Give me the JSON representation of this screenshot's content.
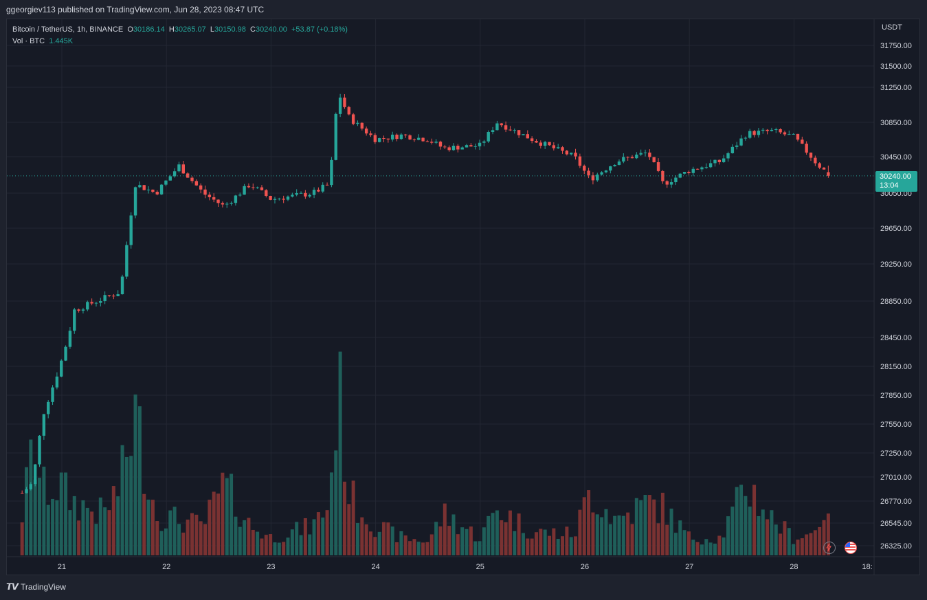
{
  "header": {
    "published": "ggeorgiev113 published on TradingView.com, Jun 28, 2023 08:47 UTC"
  },
  "legend": {
    "symbol": "Bitcoin / TetherUS, 1h, BINANCE",
    "o_label": "O",
    "o": "30186.14",
    "h_label": "H",
    "h": "30265.07",
    "l_label": "L",
    "l": "30150.98",
    "c_label": "C",
    "c": "30240.00",
    "change": "+53.87 (+0.18%)",
    "vol_label": "Vol · BTC",
    "vol": "1.445K"
  },
  "price_axis": {
    "unit": "USDT"
  },
  "last_price": {
    "value": "30240.00",
    "countdown": "13:04"
  },
  "footer": {
    "logo": "TradingView"
  },
  "icons": {
    "bolt": "lightning-icon",
    "flag": "us-flag-icon"
  },
  "colors": {
    "up": "#26a69a",
    "down": "#ef5350",
    "background": "#161a25",
    "grid": "#232733"
  },
  "chart_data": {
    "type": "candlestick",
    "timeframe": "1h",
    "symbol": "BTCUSDT",
    "y_ticks": [
      "31750.00",
      "31500.00",
      "31250.00",
      "30850.00",
      "30450.00",
      "30050.00",
      "29650.00",
      "29250.00",
      "28850.00",
      "28450.00",
      "28150.00",
      "27850.00",
      "27550.00",
      "27250.00",
      "27010.00",
      "26770.00",
      "26545.00",
      "26325.00"
    ],
    "x_ticks": [
      "21",
      "22",
      "23",
      "24",
      "25",
      "26",
      "27",
      "28",
      "18:"
    ],
    "last_price": 30240.0,
    "anchors": [
      {
        "day": 20.62,
        "price": 26850,
        "vol": 0.35
      },
      {
        "day": 20.72,
        "price": 26950,
        "vol": 0.9
      },
      {
        "day": 20.82,
        "price": 27650,
        "vol": 0.55
      },
      {
        "day": 20.98,
        "price": 28150,
        "vol": 0.6
      },
      {
        "day": 21.06,
        "price": 28450,
        "vol": 0.5
      },
      {
        "day": 21.12,
        "price": 28750,
        "vol": 0.45
      },
      {
        "day": 21.4,
        "price": 28880,
        "vol": 0.35
      },
      {
        "day": 21.56,
        "price": 28950,
        "vol": 0.6
      },
      {
        "day": 21.7,
        "price": 30150,
        "vol": 1.2
      },
      {
        "day": 21.9,
        "price": 30050,
        "vol": 0.35
      },
      {
        "day": 22.12,
        "price": 30350,
        "vol": 0.3
      },
      {
        "day": 22.35,
        "price": 30050,
        "vol": 0.25
      },
      {
        "day": 22.55,
        "price": 29900,
        "vol": 0.6
      },
      {
        "day": 22.8,
        "price": 30150,
        "vol": 0.25
      },
      {
        "day": 23.0,
        "price": 29980,
        "vol": 0.15
      },
      {
        "day": 23.4,
        "price": 30050,
        "vol": 0.25
      },
      {
        "day": 23.56,
        "price": 30150,
        "vol": 0.45
      },
      {
        "day": 23.64,
        "price": 31200,
        "vol": 1.5
      },
      {
        "day": 23.75,
        "price": 30900,
        "vol": 0.5
      },
      {
        "day": 24.0,
        "price": 30650,
        "vol": 0.25
      },
      {
        "day": 24.25,
        "price": 30700,
        "vol": 0.15
      },
      {
        "day": 24.5,
        "price": 30650,
        "vol": 0.12
      },
      {
        "day": 24.65,
        "price": 30550,
        "vol": 0.35
      },
      {
        "day": 25.0,
        "price": 30580,
        "vol": 0.15
      },
      {
        "day": 25.16,
        "price": 30850,
        "vol": 0.4
      },
      {
        "day": 25.5,
        "price": 30650,
        "vol": 0.2
      },
      {
        "day": 25.9,
        "price": 30450,
        "vol": 0.18
      },
      {
        "day": 26.05,
        "price": 30200,
        "vol": 0.55
      },
      {
        "day": 26.3,
        "price": 30400,
        "vol": 0.3
      },
      {
        "day": 26.6,
        "price": 30500,
        "vol": 0.45
      },
      {
        "day": 26.75,
        "price": 30150,
        "vol": 0.4
      },
      {
        "day": 27.0,
        "price": 30300,
        "vol": 0.15
      },
      {
        "day": 27.3,
        "price": 30400,
        "vol": 0.15
      },
      {
        "day": 27.55,
        "price": 30720,
        "vol": 0.6
      },
      {
        "day": 27.8,
        "price": 30750,
        "vol": 0.3
      },
      {
        "day": 28.0,
        "price": 30680,
        "vol": 0.15
      },
      {
        "day": 28.2,
        "price": 30400,
        "vol": 0.2
      },
      {
        "day": 28.34,
        "price": 30240,
        "vol": 0.5
      }
    ]
  }
}
